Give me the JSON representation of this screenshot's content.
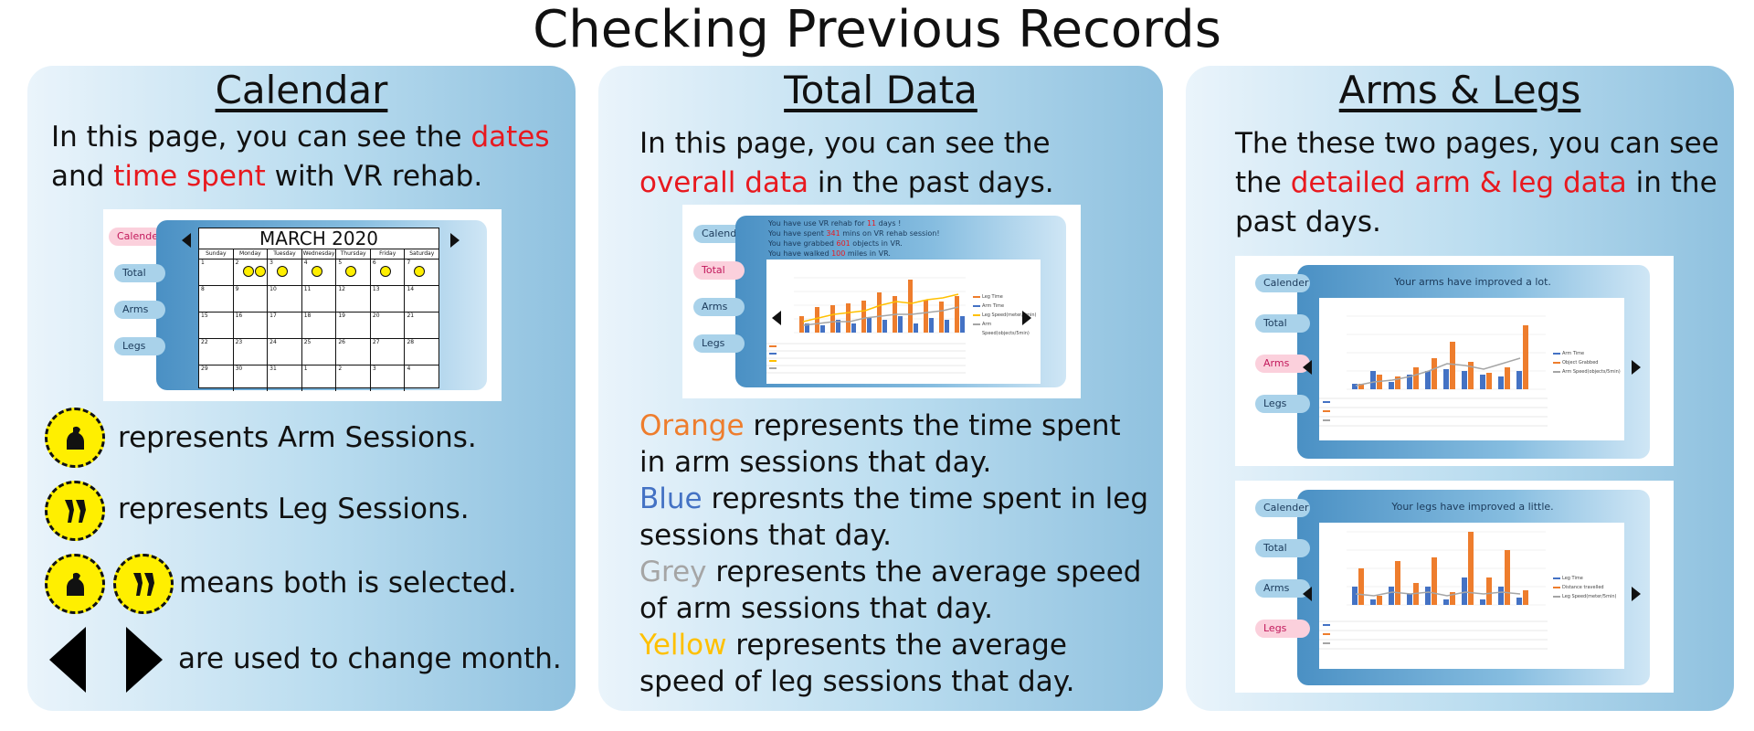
{
  "page": {
    "title": "Checking Previous Records"
  },
  "colors": {
    "red": "#e8191f",
    "orange": "#ee7d2d",
    "blue": "#4472c4",
    "grey": "#a5a5a5",
    "yellow": "#ffc000",
    "badge": "#ffef00"
  },
  "calendar_panel": {
    "title": "Calendar",
    "desc": {
      "p1": "In this page, you can see the ",
      "h1": "dates",
      "p2": " and ",
      "h2": "time spent",
      "p3": " with VR rehab."
    },
    "screenshot": {
      "nav": [
        "Calender",
        "Total",
        "Arms",
        "Legs"
      ],
      "active_nav": "Calender",
      "month": "MARCH 2020",
      "weekdays": [
        "Sunday",
        "Monday",
        "Tuesday",
        "Wednesday",
        "Thursday",
        "Friday",
        "Saturday"
      ],
      "weeks": [
        [
          "1",
          "2",
          "3",
          "4",
          "5",
          "6",
          "7"
        ],
        [
          "8",
          "9",
          "10",
          "11",
          "12",
          "13",
          "14"
        ],
        [
          "15",
          "16",
          "17",
          "18",
          "19",
          "20",
          "21"
        ],
        [
          "22",
          "23",
          "24",
          "25",
          "26",
          "27",
          "28"
        ],
        [
          "29",
          "30",
          "31",
          "1",
          "2",
          "3",
          "4"
        ]
      ],
      "session_days": [
        {
          "day": "2",
          "icons": [
            "arm-icon",
            "leg-icon"
          ]
        },
        {
          "day": "3",
          "icons": [
            "arm-icon"
          ]
        },
        {
          "day": "4",
          "icons": [
            "arm-icon"
          ]
        },
        {
          "day": "5",
          "icons": [
            "leg-icon"
          ]
        },
        {
          "day": "6",
          "icons": [
            "arm-icon"
          ]
        },
        {
          "day": "7",
          "icons": [
            "leg-icon"
          ]
        }
      ]
    },
    "legend": {
      "arm": {
        "icon": "arm-icon",
        "text": "represents Arm Sessions."
      },
      "leg": {
        "icon": "leg-icon",
        "text": "represents Leg Sessions."
      },
      "both": {
        "icons": [
          "arm-icon",
          "leg-icon"
        ],
        "text": "means both is selected."
      },
      "arrows": {
        "icons": [
          "left-arrow-icon",
          "right-arrow-icon"
        ],
        "text": "are used to change month."
      }
    }
  },
  "total_panel": {
    "title": "Total Data",
    "desc": {
      "p1": "In this page, you can see the ",
      "h1": "overall data",
      "p2": " in the past days."
    },
    "screenshot": {
      "nav": [
        "Calender",
        "Total",
        "Arms",
        "Legs"
      ],
      "active_nav": "Total",
      "info": [
        {
          "pre": "You have use VR rehab for ",
          "val": "11",
          "post": " days !"
        },
        {
          "pre": "You have spent ",
          "val": "341",
          "post": " mins on VR rehab session!"
        },
        {
          "pre": "You have grabbed ",
          "val": "601",
          "post": " objects in VR."
        },
        {
          "pre": "You have walked ",
          "val": "100",
          "post": " miles in VR."
        }
      ],
      "legend": [
        "Leg Time",
        "Arm Time",
        "Leg Speed(meter/5min)",
        "Arm Speed(objects/5min)"
      ]
    },
    "lines": [
      {
        "hl": "Orange",
        "color_key": "orange",
        "rest": " represents the time spent in arm sessions that day."
      },
      {
        "hl": "Blue",
        "color_key": "blue",
        "rest": " represnts the time spent in leg sessions that day."
      },
      {
        "hl": "Grey",
        "color_key": "grey",
        "rest": " represents the average speed of arm sessions that day."
      },
      {
        "hl": "Yellow",
        "color_key": "yellow",
        "rest": " represents the average speed of leg sessions that day."
      }
    ]
  },
  "limbs_panel": {
    "title": "Arms & Legs",
    "desc": {
      "p1": "The these two pages, you can see the ",
      "h1": "detailed arm & leg data",
      "p2": " in the past days."
    },
    "arms_screenshot": {
      "nav": [
        "Calender",
        "Total",
        "Arms",
        "Legs"
      ],
      "active_nav": "Arms",
      "heading": "Your arms have improved a lot.",
      "legend": [
        "Arm Time",
        "Object Grabbed",
        "Arm Speed(objects/5min)"
      ]
    },
    "legs_screenshot": {
      "nav": [
        "Calender",
        "Total",
        "Arms",
        "Legs"
      ],
      "active_nav": "Legs",
      "heading": "Your legs have improved a little.",
      "legend": [
        "Leg Time",
        "Distance travelled",
        "Leg Speed(meter/5min)"
      ]
    }
  }
}
